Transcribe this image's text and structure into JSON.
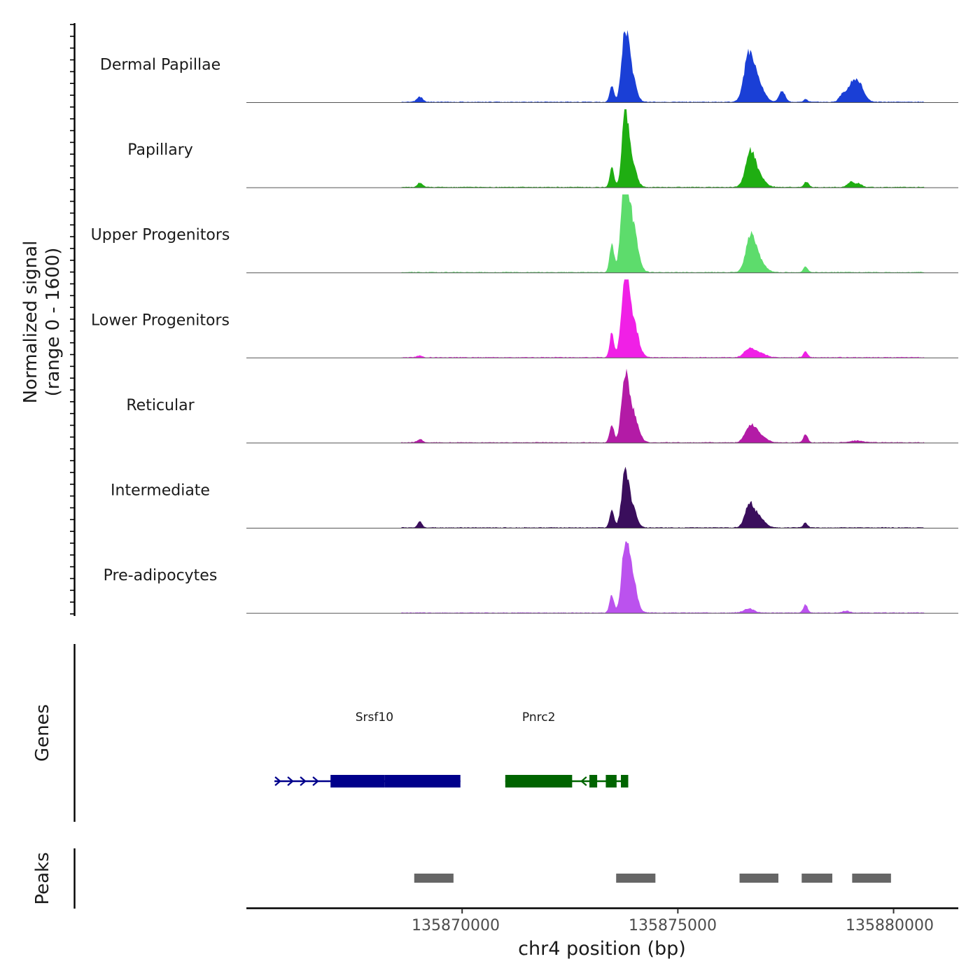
{
  "y_axis": {
    "title_line1": "Normalized signal",
    "title_line2": "(range 0 - 1600)"
  },
  "genes_axis_label": "Genes",
  "peaks_axis_label": "Peaks",
  "x_axis": {
    "title": "chr4 position (bp)",
    "ticks": [
      "135870000",
      "135875000",
      "135880000"
    ]
  },
  "chart_data": {
    "type": "area",
    "title": "",
    "xlabel": "chr4 position (bp)",
    "ylabel": "Normalized signal (range 0 - 1600)",
    "xlim": [
      135865000,
      135881500
    ],
    "ylim": [
      0,
      1600
    ],
    "x_ticks": [
      135870000,
      135875000,
      135880000
    ],
    "series": [
      {
        "name": "Dermal Papillae",
        "color": "#1a3fd6",
        "peaks": [
          [
            135869020,
            110,
            70
          ],
          [
            135873470,
            330,
            50
          ],
          [
            135873770,
            1200,
            80
          ],
          [
            135873900,
            700,
            110
          ],
          [
            135876640,
            780,
            110
          ],
          [
            135876800,
            500,
            160
          ],
          [
            135877420,
            230,
            70
          ],
          [
            135877960,
            60,
            50
          ],
          [
            135878800,
            130,
            70
          ],
          [
            135879040,
            390,
            120
          ],
          [
            135879230,
            280,
            110
          ]
        ]
      },
      {
        "name": "Papillary",
        "color": "#1fae12",
        "peaks": [
          [
            135869020,
            90,
            60
          ],
          [
            135873470,
            430,
            50
          ],
          [
            135873770,
            1400,
            70
          ],
          [
            135873900,
            700,
            110
          ],
          [
            135876670,
            620,
            110
          ],
          [
            135876830,
            280,
            150
          ],
          [
            135877980,
            120,
            50
          ],
          [
            135879010,
            110,
            80
          ],
          [
            135879200,
            70,
            70
          ]
        ]
      },
      {
        "name": "Upper Progenitors",
        "color": "#5ddc6c",
        "peaks": [
          [
            135873470,
            620,
            50
          ],
          [
            135873770,
            1800,
            90
          ],
          [
            135873950,
            950,
            120
          ],
          [
            135876680,
            640,
            110
          ],
          [
            135876840,
            300,
            150
          ],
          [
            135877960,
            120,
            50
          ]
        ]
      },
      {
        "name": "Lower Progenitors",
        "color": "#f020e6",
        "peaks": [
          [
            135869000,
            40,
            60
          ],
          [
            135873470,
            540,
            50
          ],
          [
            135873770,
            1500,
            80
          ],
          [
            135873930,
            900,
            130
          ],
          [
            135876640,
            150,
            110
          ],
          [
            135876860,
            110,
            150
          ],
          [
            135877960,
            120,
            50
          ]
        ]
      },
      {
        "name": "Reticular",
        "color": "#b31ba6",
        "peaks": [
          [
            135869020,
            70,
            60
          ],
          [
            135873470,
            380,
            50
          ],
          [
            135873770,
            1150,
            80
          ],
          [
            135873930,
            700,
            130
          ],
          [
            135876660,
            300,
            110
          ],
          [
            135876860,
            200,
            150
          ],
          [
            135877960,
            170,
            50
          ],
          [
            135879150,
            40,
            150
          ]
        ]
      },
      {
        "name": "Intermediate",
        "color": "#3a0e5c",
        "peaks": [
          [
            135869020,
            150,
            50
          ],
          [
            135873470,
            400,
            50
          ],
          [
            135873770,
            1020,
            80
          ],
          [
            135873920,
            500,
            110
          ],
          [
            135876650,
            440,
            100
          ],
          [
            135876850,
            260,
            140
          ],
          [
            135877960,
            100,
            50
          ]
        ]
      },
      {
        "name": "Pre-adipocytes",
        "color": "#bb52ee",
        "peaks": [
          [
            135873470,
            390,
            50
          ],
          [
            135873770,
            1200,
            80
          ],
          [
            135873920,
            900,
            110
          ],
          [
            135876650,
            90,
            120
          ],
          [
            135877960,
            170,
            50
          ],
          [
            135878900,
            40,
            80
          ]
        ]
      }
    ],
    "genes": [
      {
        "name": "Srsf10",
        "strand": "+",
        "color": "#00008b",
        "start": 135865650,
        "end": 135869960,
        "blocks": [
          [
            135866950,
            135868200
          ],
          [
            135868200,
            135869960
          ]
        ]
      },
      {
        "name": "Pnrc2",
        "strand": "-",
        "color": "#006400",
        "start": 135871000,
        "end": 135873850,
        "blocks": [
          [
            135871000,
            135872550
          ],
          [
            135872950,
            135873130
          ],
          [
            135873330,
            135873580
          ],
          [
            135873680,
            135873850
          ]
        ]
      }
    ],
    "peaks": [
      [
        135868890,
        135869800
      ],
      [
        135873570,
        135874480
      ],
      [
        135876430,
        135877330
      ],
      [
        135877870,
        135878580
      ],
      [
        135879040,
        135879940
      ]
    ]
  }
}
